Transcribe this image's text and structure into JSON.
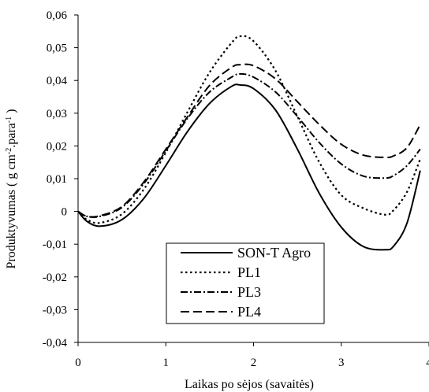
{
  "chart_data": {
    "type": "line",
    "title": "",
    "xlabel": "Laikas po sėjos (savaitės)",
    "ylabel": "Produktyvumas ( g cm",
    "ylabel_sup1": "-2",
    "ylabel_mid": ".para",
    "ylabel_sup2": "-1",
    "ylabel_end": " )",
    "xlim": [
      0,
      4
    ],
    "ylim": [
      -0.04,
      0.06
    ],
    "x_ticks": [
      0,
      1,
      2,
      3,
      4
    ],
    "x_tick_labels": [
      "0",
      "1",
      "2",
      "3",
      "4"
    ],
    "y_ticks": [
      -0.04,
      -0.03,
      -0.02,
      -0.01,
      0,
      0.01,
      0.02,
      0.03,
      0.04,
      0.05,
      0.06
    ],
    "y_tick_labels": [
      "-0,04",
      "-0,03",
      "-0,02",
      "-0,01",
      "0",
      "0,01",
      "0,02",
      "0,03",
      "0,04",
      "0,05",
      "0,06"
    ],
    "grid": false,
    "legend_position": "bottom-center",
    "series": [
      {
        "name": "SON-T Agro",
        "style": "solid",
        "x": [
          0,
          0.1,
          0.25,
          0.5,
          0.75,
          1.0,
          1.25,
          1.5,
          1.75,
          1.85,
          2.0,
          2.25,
          2.5,
          2.75,
          3.0,
          3.25,
          3.5,
          3.6,
          3.75,
          3.9
        ],
        "y": [
          0,
          -0.003,
          -0.0045,
          -0.0025,
          0.004,
          0.014,
          0.0245,
          0.033,
          0.0382,
          0.0386,
          0.0375,
          0.031,
          0.019,
          0.0055,
          -0.0048,
          -0.0107,
          -0.0117,
          -0.0105,
          -0.0035,
          0.0125
        ]
      },
      {
        "name": "PL1",
        "style": "dotted",
        "x": [
          0,
          0.1,
          0.25,
          0.5,
          0.75,
          1.0,
          1.25,
          1.5,
          1.75,
          1.85,
          2.0,
          2.25,
          2.5,
          2.75,
          3.0,
          3.25,
          3.5,
          3.6,
          3.75,
          3.9
        ],
        "y": [
          0,
          -0.0025,
          -0.0035,
          -0.0008,
          0.0068,
          0.018,
          0.0305,
          0.0425,
          0.0515,
          0.0535,
          0.052,
          0.043,
          0.029,
          0.015,
          0.005,
          0.001,
          -0.001,
          0.0005,
          0.006,
          0.016
        ]
      },
      {
        "name": "PL3",
        "style": "dashdot",
        "x": [
          0,
          0.1,
          0.25,
          0.5,
          0.75,
          1.0,
          1.25,
          1.5,
          1.75,
          1.85,
          2.0,
          2.25,
          2.5,
          2.75,
          3.0,
          3.25,
          3.5,
          3.6,
          3.75,
          3.9
        ],
        "y": [
          0,
          -0.0015,
          -0.0015,
          0.0012,
          0.0085,
          0.0185,
          0.0285,
          0.0365,
          0.041,
          0.042,
          0.041,
          0.0365,
          0.029,
          0.021,
          0.0145,
          0.0108,
          0.0102,
          0.011,
          0.014,
          0.019
        ]
      },
      {
        "name": "PL4",
        "style": "dashed",
        "x": [
          0,
          0.1,
          0.25,
          0.5,
          0.75,
          1.0,
          1.25,
          1.5,
          1.75,
          1.85,
          2.0,
          2.25,
          2.5,
          2.75,
          3.0,
          3.25,
          3.5,
          3.6,
          3.75,
          3.9
        ],
        "y": [
          0,
          -0.0015,
          -0.0013,
          0.0015,
          0.009,
          0.019,
          0.029,
          0.0385,
          0.044,
          0.0448,
          0.0445,
          0.0405,
          0.0335,
          0.0265,
          0.0205,
          0.0172,
          0.0165,
          0.017,
          0.0195,
          0.0265
        ]
      }
    ]
  }
}
